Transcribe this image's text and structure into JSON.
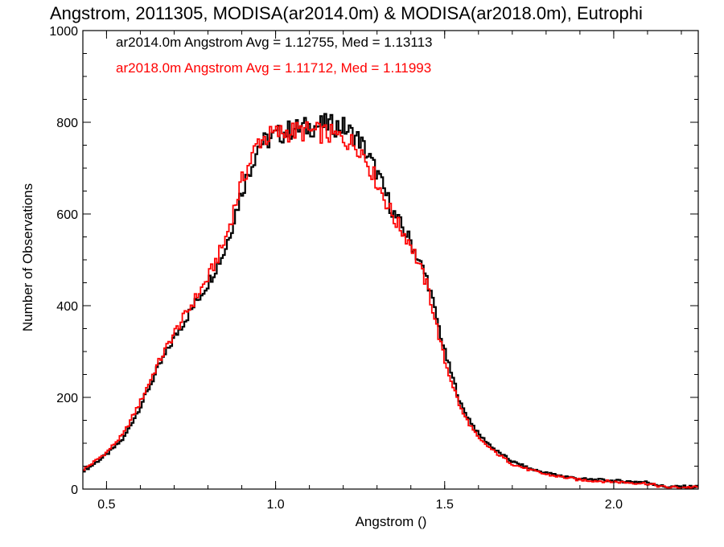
{
  "chart_data": {
    "type": "line",
    "step": true,
    "title": "Angstrom, 2011305, MODISA(ar2014.0m) & MODISA(ar2018.0m), Eutrophi",
    "xlabel": "Angstrom ()",
    "ylabel": "Number of Observations",
    "xlim": [
      0.43,
      2.25
    ],
    "ylim": [
      0,
      1000
    ],
    "x_ticks": [
      0.5,
      1.0,
      1.5,
      2.0
    ],
    "x_tick_labels": [
      "0.5",
      "1.0",
      "1.5",
      "2.0"
    ],
    "y_ticks": [
      0,
      200,
      400,
      600,
      800,
      1000
    ],
    "y_tick_labels": [
      "0",
      "200",
      "400",
      "600",
      "800",
      "1000"
    ],
    "grid": false,
    "legend_placement": "top-left",
    "annotations": [
      {
        "text": "ar2014.0m Angstrom Avg = 1.12755, Med = 1.13113",
        "color": "#000000"
      },
      {
        "text": "ar2018.0m Angstrom Avg = 1.11712, Med = 1.11993",
        "color": "#ff0000"
      }
    ],
    "series": [
      {
        "color": "#000000",
        "x": [
          0.43,
          0.45,
          0.5,
          0.55,
          0.6,
          0.65,
          0.7,
          0.75,
          0.8,
          0.85,
          0.9,
          0.95,
          1.0,
          1.05,
          1.1,
          1.15,
          1.2,
          1.25,
          1.3,
          1.35,
          1.4,
          1.45,
          1.5,
          1.55,
          1.6,
          1.65,
          1.7,
          1.75,
          1.8,
          1.9,
          2.0,
          2.1,
          2.15,
          2.25
        ],
        "y": [
          40,
          48,
          75,
          110,
          180,
          260,
          330,
          390,
          450,
          520,
          650,
          750,
          770,
          785,
          790,
          795,
          790,
          760,
          690,
          600,
          540,
          455,
          300,
          180,
          120,
          85,
          60,
          45,
          35,
          22,
          18,
          15,
          5,
          5
        ]
      },
      {
        "color": "#ff0000",
        "x": [
          0.43,
          0.45,
          0.5,
          0.55,
          0.6,
          0.65,
          0.7,
          0.75,
          0.8,
          0.85,
          0.9,
          0.95,
          1.0,
          1.05,
          1.1,
          1.15,
          1.2,
          1.25,
          1.3,
          1.35,
          1.4,
          1.45,
          1.5,
          1.55,
          1.6,
          1.65,
          1.7,
          1.75,
          1.8,
          1.9,
          2.0,
          2.1,
          2.15,
          2.25
        ],
        "y": [
          42,
          52,
          80,
          120,
          190,
          270,
          340,
          400,
          460,
          540,
          670,
          760,
          775,
          780,
          780,
          775,
          765,
          745,
          670,
          590,
          535,
          440,
          280,
          170,
          110,
          80,
          55,
          42,
          32,
          20,
          16,
          12,
          4,
          4
        ]
      }
    ]
  }
}
